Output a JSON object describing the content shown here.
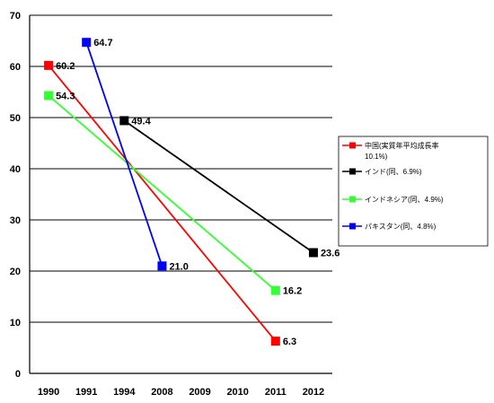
{
  "chart_data": {
    "type": "line",
    "title": "",
    "xlabel": "",
    "ylabel": "",
    "ylim": [
      0,
      70
    ],
    "yticks": [
      0,
      10,
      20,
      30,
      40,
      50,
      60,
      70
    ],
    "categories": [
      "1990",
      "1991",
      "1994",
      "2008",
      "2009",
      "2010",
      "2011",
      "2012"
    ],
    "grid": true,
    "legend_position": "right",
    "series": [
      {
        "name": "中国(実質年平均成長率 10.1%)",
        "legend_lines": [
          "中国(実質年平均成長率",
          "10.1%)"
        ],
        "color": "#ff0000",
        "points": [
          {
            "x": "1990",
            "y": 60.2,
            "label": "60.2"
          },
          {
            "x": "2011",
            "y": 6.3,
            "label": "6.3"
          }
        ]
      },
      {
        "name": "インド(同、6.9%)",
        "legend_lines": [
          "インド(同、6.9%)"
        ],
        "color": "#000000",
        "points": [
          {
            "x": "1994",
            "y": 49.4,
            "label": "49.4"
          },
          {
            "x": "2012",
            "y": 23.6,
            "label": "23.6"
          }
        ]
      },
      {
        "name": "インドネシア(同、4.9%)",
        "legend_lines": [
          "インドネシア(同、4.9%)"
        ],
        "color": "#33ff33",
        "points": [
          {
            "x": "1990",
            "y": 54.3,
            "label": "54.3"
          },
          {
            "x": "2011",
            "y": 16.2,
            "label": "16.2"
          }
        ]
      },
      {
        "name": "パキスタン(同、4.8%)",
        "legend_lines": [
          "パキスタン(同、4.8%)"
        ],
        "color": "#0000ff",
        "points": [
          {
            "x": "1991",
            "y": 64.7,
            "label": "64.7"
          },
          {
            "x": "2008",
            "y": 21.0,
            "label": "21.0"
          }
        ]
      }
    ]
  }
}
